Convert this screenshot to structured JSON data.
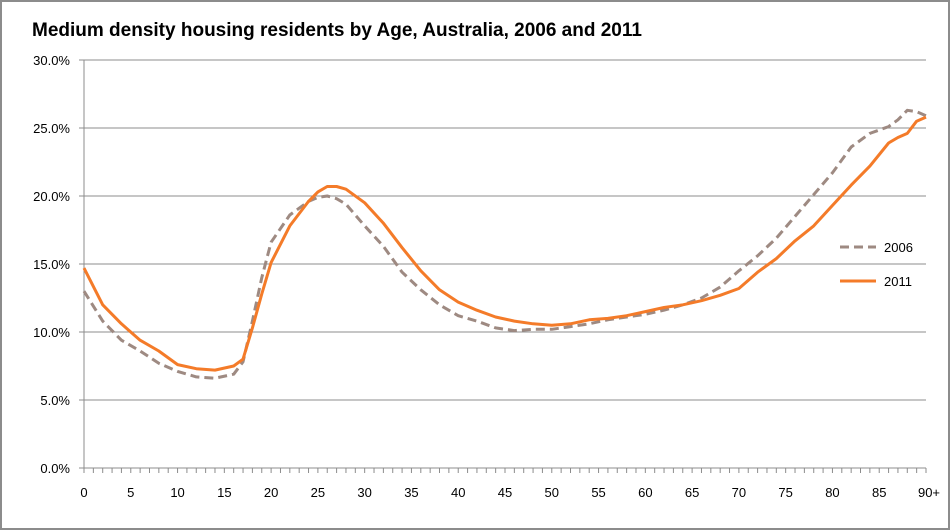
{
  "chart_data": {
    "type": "line",
    "title": "Medium density housing residents by Age, Australia, 2006 and 2011",
    "xlabel": "",
    "ylabel": "",
    "xlim": [
      0,
      90
    ],
    "ylim": [
      0,
      30
    ],
    "x_tick_labels": [
      "0",
      "5",
      "10",
      "15",
      "20",
      "25",
      "30",
      "35",
      "40",
      "45",
      "50",
      "55",
      "60",
      "65",
      "70",
      "75",
      "80",
      "85",
      "90+"
    ],
    "y_tick_labels": [
      "0.0%",
      "5.0%",
      "10.0%",
      "15.0%",
      "20.0%",
      "25.0%",
      "30.0%"
    ],
    "y_ticks": [
      0,
      5,
      10,
      15,
      20,
      25,
      30
    ],
    "grid": "horizontal",
    "legend_position": "right",
    "x": [
      0,
      2,
      4,
      6,
      8,
      10,
      12,
      14,
      16,
      17,
      18,
      19,
      20,
      22,
      24,
      25,
      26,
      27,
      28,
      30,
      32,
      34,
      36,
      38,
      40,
      42,
      44,
      46,
      48,
      50,
      52,
      54,
      56,
      58,
      60,
      62,
      64,
      66,
      68,
      70,
      72,
      74,
      76,
      78,
      80,
      82,
      84,
      86,
      87,
      88,
      89,
      90
    ],
    "series": [
      {
        "name": "2006",
        "color": "#9e8a82",
        "dash": "dashed",
        "values": [
          13.0,
          10.8,
          9.4,
          8.6,
          7.7,
          7.1,
          6.7,
          6.6,
          6.9,
          7.8,
          10.8,
          14.0,
          16.6,
          18.6,
          19.6,
          19.9,
          20.0,
          19.8,
          19.4,
          17.8,
          16.3,
          14.4,
          13.1,
          12.0,
          11.2,
          10.8,
          10.3,
          10.1,
          10.2,
          10.2,
          10.4,
          10.6,
          10.9,
          11.1,
          11.3,
          11.6,
          12.0,
          12.5,
          13.3,
          14.5,
          15.6,
          16.9,
          18.5,
          20.1,
          21.7,
          23.6,
          24.6,
          25.1,
          25.6,
          26.3,
          26.2,
          25.9
        ]
      },
      {
        "name": "2011",
        "color": "#f47b29",
        "dash": "solid",
        "values": [
          14.7,
          12.0,
          10.6,
          9.4,
          8.6,
          7.6,
          7.3,
          7.2,
          7.5,
          8.0,
          10.3,
          12.8,
          15.1,
          17.8,
          19.6,
          20.3,
          20.7,
          20.7,
          20.5,
          19.5,
          18.0,
          16.2,
          14.5,
          13.1,
          12.2,
          11.6,
          11.1,
          10.8,
          10.6,
          10.5,
          10.6,
          10.9,
          11.0,
          11.2,
          11.5,
          11.8,
          12.0,
          12.3,
          12.7,
          13.2,
          14.4,
          15.4,
          16.7,
          17.8,
          19.3,
          20.8,
          22.2,
          23.9,
          24.3,
          24.6,
          25.5,
          25.8
        ]
      }
    ]
  }
}
